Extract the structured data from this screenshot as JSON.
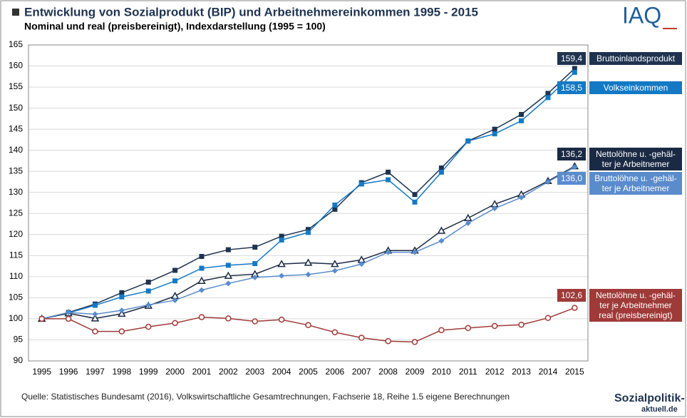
{
  "chart_data": {
    "type": "line",
    "title": "Entwicklung von Sozialprodukt (BIP) und Arbeitnehmereinkommen 1995 - 2015",
    "subtitle": "Nominal und real (preisbereinigt),  Indexdarstellung (1995 = 100)",
    "source": "Quelle: Statistisches Bundesamt (2016), Volkswirtschaftliche Gesamtrechnungen, Fachserie 18, Reihe 1.5  eigene Berechnungen",
    "logos": [
      "IAQ",
      "Sozialpolitik-",
      "aktuell.de"
    ],
    "categories": [
      "1995",
      "1996",
      "1997",
      "1998",
      "1999",
      "2000",
      "2001",
      "2002",
      "2003",
      "2004",
      "2005",
      "2006",
      "2007",
      "2008",
      "2009",
      "2010",
      "2011",
      "2012",
      "2013",
      "2014",
      "2015"
    ],
    "ylim": [
      90,
      165
    ],
    "yticks": [
      90,
      95,
      100,
      105,
      110,
      115,
      120,
      125,
      130,
      135,
      140,
      145,
      150,
      155,
      160,
      165
    ],
    "grid": true,
    "series": [
      {
        "name": "Bruttoinlandsprodukt",
        "color": "#1f3350",
        "marker": "square",
        "values": [
          100,
          101.5,
          103.5,
          106.2,
          108.7,
          111.5,
          114.8,
          116.4,
          117,
          119.6,
          121.2,
          126,
          132.3,
          134.8,
          129.5,
          135.8,
          142.2,
          145,
          148.5,
          153.5,
          159.4
        ],
        "value_labels": [
          null,
          null,
          null,
          null,
          null,
          null,
          null,
          null,
          null,
          null,
          null,
          null,
          null,
          null,
          null,
          null,
          null,
          null,
          null,
          null,
          "159,4"
        ]
      },
      {
        "name": "Volkseinkommen",
        "color": "#1479c4",
        "marker": "square",
        "values": [
          100,
          101.4,
          103.2,
          105.2,
          106.6,
          109,
          112,
          112.7,
          113.1,
          118.7,
          120.5,
          127,
          132,
          133,
          127.7,
          134.8,
          142.2,
          143.9,
          147,
          152.5,
          158.5
        ],
        "value_labels": [
          null,
          null,
          null,
          null,
          null,
          null,
          null,
          null,
          null,
          null,
          null,
          null,
          null,
          null,
          null,
          null,
          null,
          null,
          null,
          null,
          "158,5"
        ]
      },
      {
        "name": "Nettolöhne u. -gehäl-\nter je Arbeitnemer",
        "color": "#1b2a44",
        "marker": "triangle",
        "values": [
          100,
          101.3,
          100.1,
          101.2,
          103.1,
          105.4,
          109,
          110.2,
          110.6,
          113,
          113.3,
          113,
          114,
          116.2,
          116.2,
          120.9,
          123.9,
          127.2,
          129.5,
          132.7,
          136.2
        ],
        "value_labels": [
          null,
          null,
          null,
          null,
          null,
          null,
          null,
          null,
          null,
          null,
          null,
          null,
          null,
          null,
          null,
          null,
          null,
          null,
          null,
          null,
          "136,2"
        ]
      },
      {
        "name": "Bruttolöhne u. -gehäl-\nter je Arbeitnemer",
        "color": "#5a8ccc",
        "marker": "diamond",
        "values": [
          100,
          101.5,
          101.1,
          102,
          103.3,
          104.4,
          106.8,
          108.4,
          109.8,
          110.2,
          110.5,
          111.4,
          113,
          115.8,
          115.8,
          118.5,
          122.7,
          126.2,
          128.8,
          132.5,
          136.0
        ],
        "value_labels": [
          null,
          null,
          null,
          null,
          null,
          null,
          null,
          null,
          null,
          null,
          null,
          null,
          null,
          null,
          null,
          null,
          null,
          null,
          null,
          null,
          "136,0"
        ]
      },
      {
        "name": "Nettolöhne u. -gehäl-\nter je Arbeitnehmer\nreal (preisbereinigt)",
        "color": "#9e3a38",
        "marker": "circle",
        "values": [
          100,
          100,
          97,
          97,
          98.1,
          99,
          100.4,
          100.1,
          99.4,
          99.8,
          98.5,
          96.8,
          95.5,
          94.7,
          94.5,
          97.3,
          97.8,
          98.3,
          98.6,
          100.2,
          102.6
        ],
        "value_labels": [
          null,
          null,
          null,
          null,
          null,
          null,
          null,
          null,
          null,
          null,
          null,
          null,
          null,
          null,
          null,
          null,
          null,
          null,
          null,
          null,
          "102,6"
        ]
      }
    ]
  }
}
